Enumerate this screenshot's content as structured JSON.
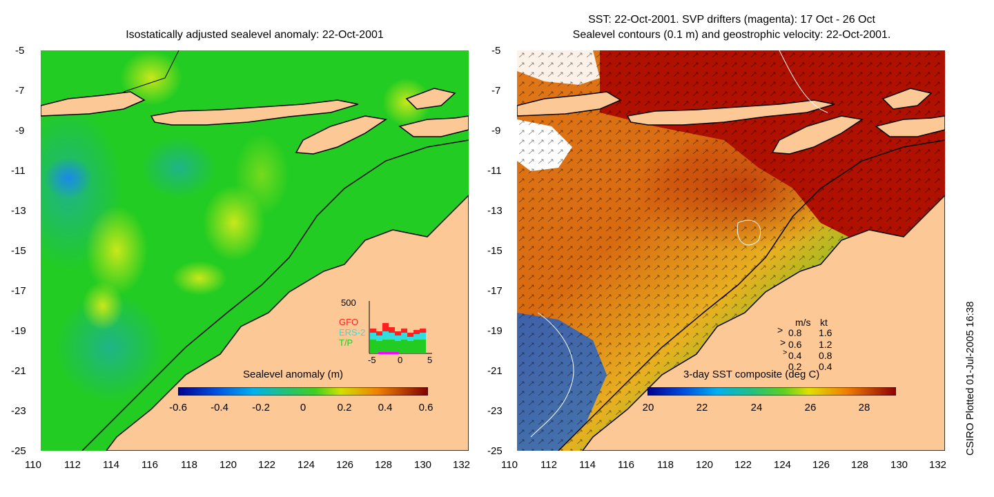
{
  "left_panel": {
    "title": "Isostatically adjusted sealevel anomaly: 22-Oct-2001",
    "colorbar_label": "Sealevel anomaly (m)",
    "colorbar_ticks": [
      "-0.6",
      "-0.4",
      "-0.2",
      "0",
      "0.2",
      "0.4",
      "0.6"
    ],
    "inset": {
      "y_label": "500",
      "legend": [
        "GFO",
        "ERS-2",
        "T/P"
      ],
      "x_ticks": [
        "-5",
        "0",
        "5"
      ],
      "colors": {
        "GFO": "#ff2020",
        "ERS-2": "#33dddd",
        "T/P": "#22cc22"
      }
    }
  },
  "right_panel": {
    "title_line1": "SST: 22-Oct-2001. SVP drifters (magenta): 17 Oct - 26 Oct",
    "title_line2": "Sealevel contours (0.1 m) and geostrophic velocity: 22-Oct-2001.",
    "colorbar_label": "3-day SST composite (deg C)",
    "colorbar_ticks": [
      "20",
      "22",
      "24",
      "26",
      "28"
    ],
    "velocity_key": {
      "header_ms": "m/s",
      "header_kt": "kt",
      "rows": [
        {
          "ms": "0.8",
          "kt": "1.6"
        },
        {
          "ms": "0.6",
          "kt": "1.2"
        },
        {
          "ms": "0.4",
          "kt": "0.8"
        },
        {
          "ms": "0.2",
          "kt": "0.4"
        }
      ]
    }
  },
  "axes": {
    "y_ticks": [
      "-5",
      "-7",
      "-9",
      "-11",
      "-13",
      "-15",
      "-17",
      "-19",
      "-21",
      "-23",
      "-25"
    ],
    "x_ticks": [
      "110",
      "112",
      "114",
      "116",
      "118",
      "120",
      "122",
      "124",
      "126",
      "128",
      "130",
      "132"
    ]
  },
  "side_note": "CSIRO Plotted 01-Jul-2005 16:38",
  "colors": {
    "land": "#fcc896",
    "sla_ocean": "#22cc22",
    "sst_warm": "#b01000",
    "sst_mid": "#e08a10",
    "sst_cool": "#1a60d0"
  }
}
